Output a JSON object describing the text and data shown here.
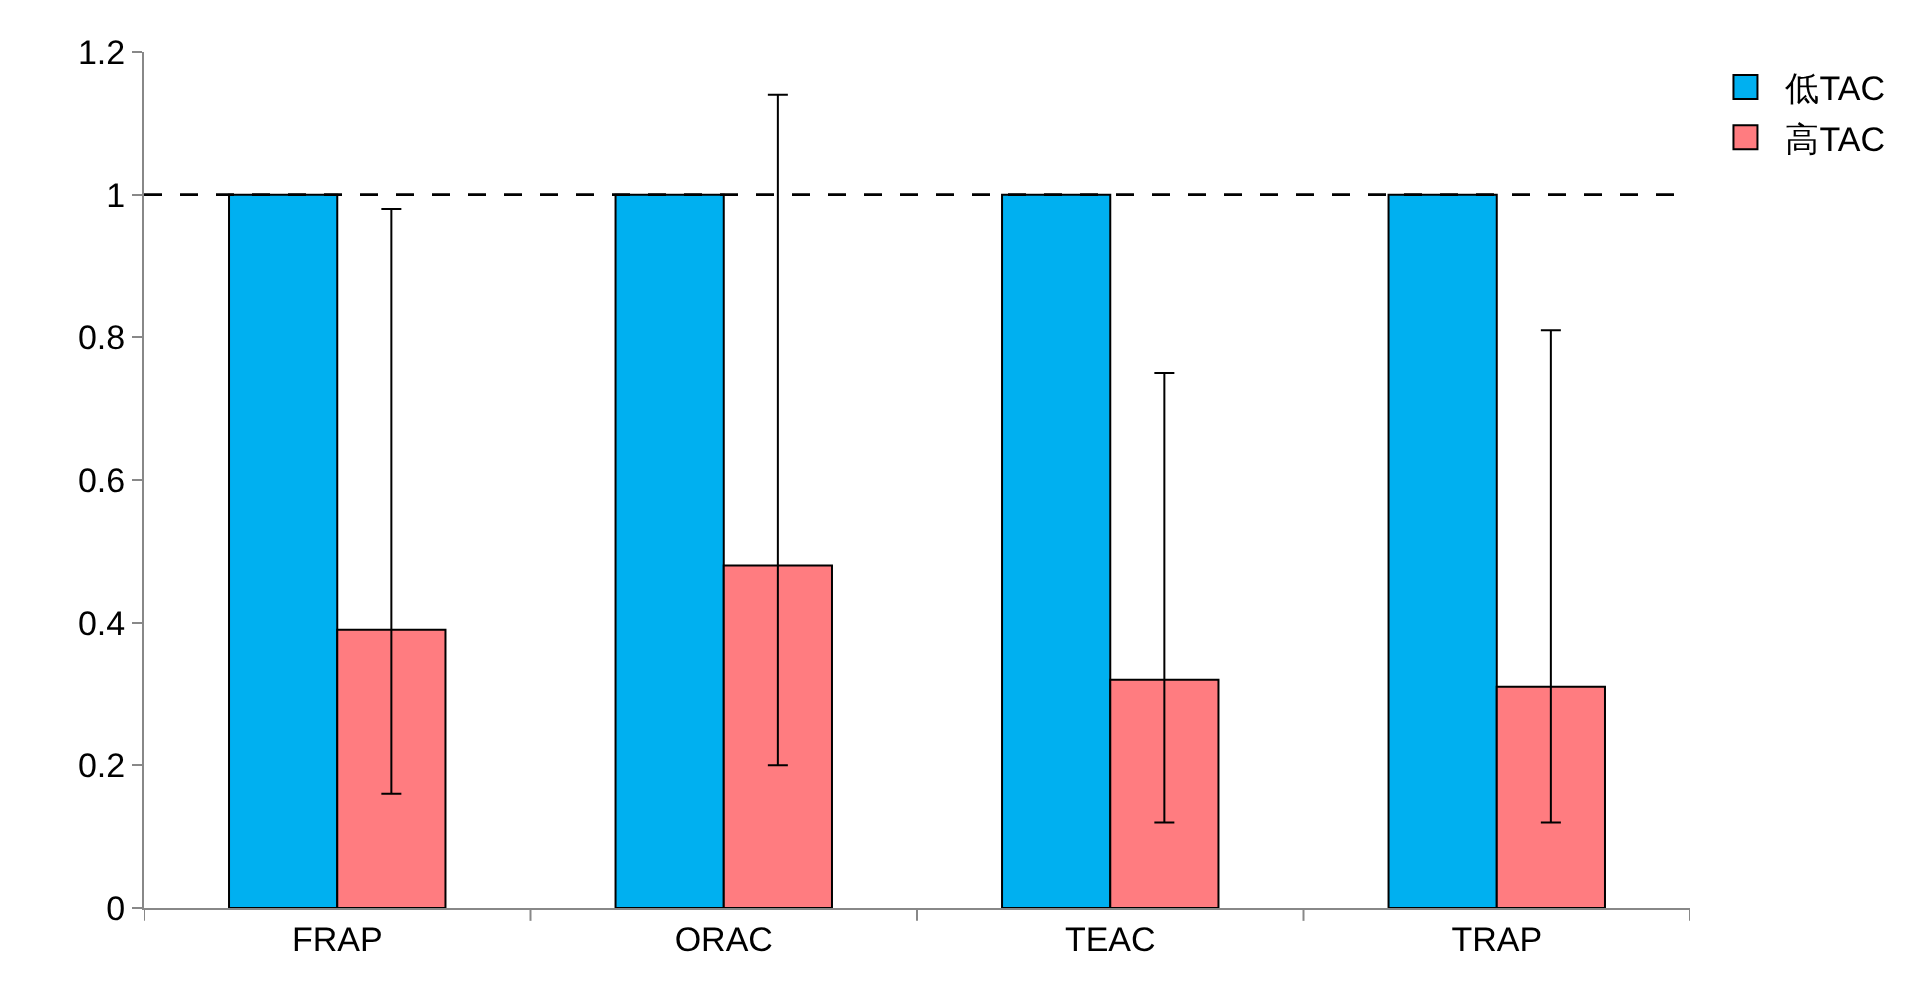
{
  "chart_data": {
    "type": "bar",
    "categories": [
      "FRAP",
      "ORAC",
      "TEAC",
      "TRAP"
    ],
    "series": [
      {
        "name": "低TAC",
        "color": "#00b0f0",
        "values": [
          1,
          1,
          1,
          1
        ]
      },
      {
        "name": "高TAC",
        "color": "#ff7c80",
        "values": [
          0.39,
          0.48,
          0.32,
          0.31
        ],
        "errors": [
          [
            0.16,
            0.98
          ],
          [
            0.2,
            1.14
          ],
          [
            0.12,
            0.75
          ],
          [
            0.12,
            0.81
          ]
        ]
      }
    ],
    "ylim": [
      0,
      1.2
    ],
    "yticks": [
      0,
      {
        "value": 0.2,
        "label": "0.2"
      },
      {
        "value": 0.4,
        "label": "0.4"
      },
      {
        "value": 0.6,
        "label": "0.6"
      },
      {
        "value": 0.8,
        "label": "0.8"
      },
      1,
      {
        "value": 1.2,
        "label": "1.2"
      }
    ],
    "ref_lines": [
      {
        "axis": "y",
        "value": 1,
        "color": "#000000",
        "line_style": "dashed"
      }
    ],
    "legend": "top right"
  }
}
